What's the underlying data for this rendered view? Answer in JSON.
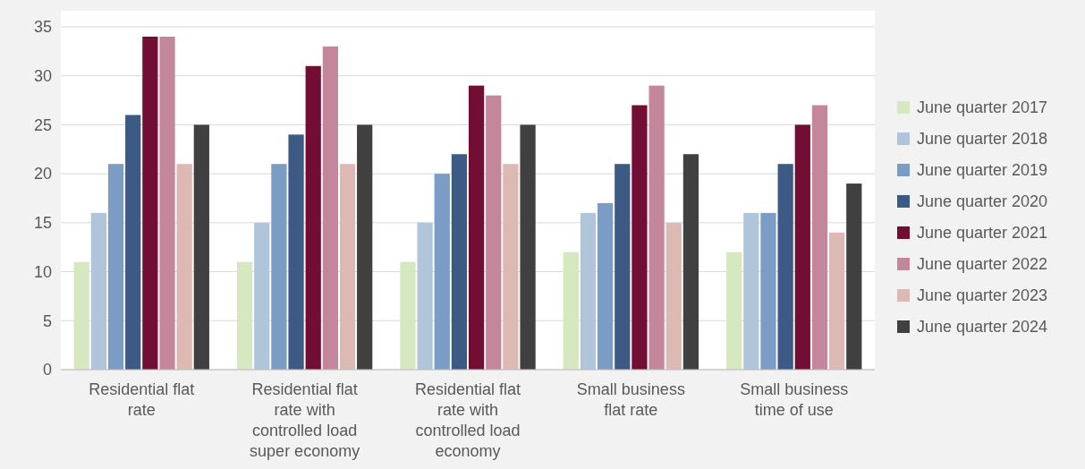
{
  "chart_data": {
    "type": "bar",
    "categories": [
      "Residential flat rate",
      "Residential flat rate with controlled load super economy",
      "Residential flat rate with controlled load economy",
      "Small business flat rate",
      "Small business time of use"
    ],
    "series": [
      {
        "name": "June quarter 2017",
        "color": "#d5e8c0",
        "values": [
          11,
          11,
          11,
          12,
          12
        ]
      },
      {
        "name": "June quarter 2018",
        "color": "#b1c5da",
        "values": [
          16,
          15,
          15,
          16,
          16
        ]
      },
      {
        "name": "June quarter 2019",
        "color": "#7b9cc4",
        "values": [
          21,
          21,
          20,
          17,
          16
        ]
      },
      {
        "name": "June quarter 2020",
        "color": "#3d5a85",
        "values": [
          26,
          24,
          22,
          21,
          21
        ]
      },
      {
        "name": "June quarter 2021",
        "color": "#720e33",
        "values": [
          34,
          31,
          29,
          27,
          25
        ]
      },
      {
        "name": "June quarter 2022",
        "color": "#c4869b",
        "values": [
          34,
          33,
          28,
          29,
          27
        ]
      },
      {
        "name": "June quarter 2023",
        "color": "#dcb9b2",
        "values": [
          21,
          21,
          21,
          15,
          14
        ]
      },
      {
        "name": "June quarter 2024",
        "color": "#404040",
        "values": [
          25,
          25,
          25,
          22,
          19
        ]
      }
    ],
    "ylim": [
      0,
      35
    ],
    "yticks": [
      0,
      5,
      10,
      15,
      20,
      25,
      30,
      35
    ],
    "grid": "y",
    "legend": "right"
  }
}
